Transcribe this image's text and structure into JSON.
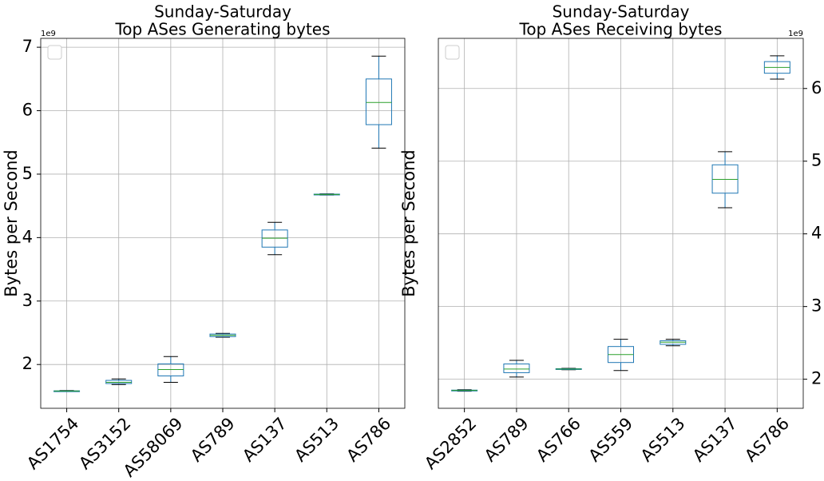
{
  "chart_data": [
    {
      "type": "box",
      "title": [
        "Sunday-Saturday",
        "Top ASes Generating bytes"
      ],
      "y_label": "Bytes per Second",
      "y_offset": "1e9",
      "yaxis_side": "left",
      "grid": true,
      "box_color": "#1f77b4",
      "median_color": "#2ca02c",
      "ylim": [
        1.31,
        7.14
      ],
      "yticks": [
        2,
        3,
        4,
        5,
        6,
        7
      ],
      "categories": [
        "AS1754",
        "AS3152",
        "AS58069",
        "AS789",
        "AS137",
        "AS513",
        "AS786"
      ],
      "boxes": [
        {
          "min": 1.575,
          "q1": 1.58,
          "median": 1.582,
          "q3": 1.585,
          "max": 1.59
        },
        {
          "min": 1.685,
          "q1": 1.7,
          "median": 1.72,
          "q3": 1.75,
          "max": 1.773
        },
        {
          "min": 1.72,
          "q1": 1.82,
          "median": 1.92,
          "q3": 2.01,
          "max": 2.126
        },
        {
          "min": 2.43,
          "q1": 2.44,
          "median": 2.46,
          "q3": 2.48,
          "max": 2.49
        },
        {
          "min": 3.73,
          "q1": 3.85,
          "median": 3.99,
          "q3": 4.12,
          "max": 4.24
        },
        {
          "min": 4.67,
          "q1": 4.675,
          "median": 4.68,
          "q3": 4.685,
          "max": 4.69
        },
        {
          "min": 5.41,
          "q1": 5.78,
          "median": 6.13,
          "q3": 6.5,
          "max": 6.86
        }
      ]
    },
    {
      "type": "box",
      "title": [
        "Sunday-Saturday",
        "Top ASes Receiving bytes"
      ],
      "y_label": "Bytes per Second",
      "y_offset": "1e9",
      "yaxis_side": "right",
      "grid": true,
      "box_color": "#1f77b4",
      "median_color": "#2ca02c",
      "ylim": [
        1.6,
        6.69
      ],
      "yticks": [
        2,
        3,
        4,
        5,
        6
      ],
      "categories": [
        "AS2852",
        "AS789",
        "AS766",
        "AS559",
        "AS513",
        "AS137",
        "AS786"
      ],
      "boxes": [
        {
          "min": 1.835,
          "q1": 1.84,
          "median": 1.846,
          "q3": 1.85,
          "max": 1.855
        },
        {
          "min": 2.03,
          "q1": 2.09,
          "median": 2.14,
          "q3": 2.21,
          "max": 2.26
        },
        {
          "min": 2.13,
          "q1": 2.135,
          "median": 2.14,
          "q3": 2.145,
          "max": 2.15
        },
        {
          "min": 2.12,
          "q1": 2.23,
          "median": 2.34,
          "q3": 2.45,
          "max": 2.55
        },
        {
          "min": 2.46,
          "q1": 2.48,
          "median": 2.51,
          "q3": 2.53,
          "max": 2.55
        },
        {
          "min": 4.36,
          "q1": 4.56,
          "median": 4.75,
          "q3": 4.95,
          "max": 5.13
        },
        {
          "min": 6.13,
          "q1": 6.21,
          "median": 6.29,
          "q3": 6.37,
          "max": 6.45
        }
      ]
    }
  ]
}
